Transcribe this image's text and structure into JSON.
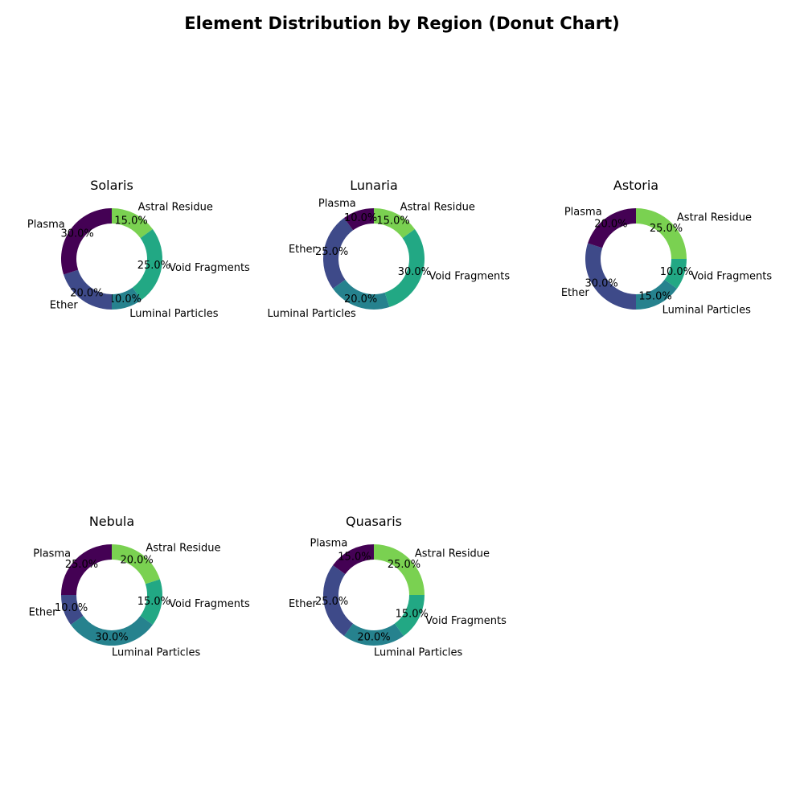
{
  "title": "Element Distribution by Region (Donut Chart)",
  "colors": {
    "Plasma": "#440154",
    "Ether": "#3e4a89",
    "Luminal Particles": "#26828e",
    "Void Fragments": "#22a884",
    "Astral Residue": "#7ad151"
  },
  "chart_data": [
    {
      "type": "pie",
      "title": "Solaris",
      "categories": [
        "Astral Residue",
        "Void Fragments",
        "Luminal Particles",
        "Ether",
        "Plasma"
      ],
      "values": [
        15,
        25,
        10,
        20,
        30
      ],
      "value_labels": [
        "15.0%",
        "25.0%",
        "10.0%",
        "20.0%",
        "30.0%"
      ]
    },
    {
      "type": "pie",
      "title": "Lunaria",
      "categories": [
        "Astral Residue",
        "Void Fragments",
        "Luminal Particles",
        "Ether",
        "Plasma"
      ],
      "values": [
        15,
        30,
        20,
        25,
        10
      ],
      "value_labels": [
        "15.0%",
        "30.0%",
        "20.0%",
        "25.0%",
        "10.0%"
      ]
    },
    {
      "type": "pie",
      "title": "Astoria",
      "categories": [
        "Astral Residue",
        "Void Fragments",
        "Luminal Particles",
        "Ether",
        "Plasma"
      ],
      "values": [
        25,
        10,
        15,
        30,
        20
      ],
      "value_labels": [
        "25.0%",
        "10.0%",
        "15.0%",
        "30.0%",
        "20.0%"
      ]
    },
    {
      "type": "pie",
      "title": "Nebula",
      "categories": [
        "Astral Residue",
        "Void Fragments",
        "Luminal Particles",
        "Ether",
        "Plasma"
      ],
      "values": [
        20,
        15,
        30,
        10,
        25
      ],
      "value_labels": [
        "20.0%",
        "15.0%",
        "30.0%",
        "10.0%",
        "25.0%"
      ]
    },
    {
      "type": "pie",
      "title": "Quasaris",
      "categories": [
        "Astral Residue",
        "Void Fragments",
        "Luminal Particles",
        "Ether",
        "Plasma"
      ],
      "values": [
        25,
        15,
        20,
        25,
        15
      ],
      "value_labels": [
        "25.0%",
        "15.0%",
        "20.0%",
        "25.0%",
        "15.0%"
      ]
    }
  ]
}
